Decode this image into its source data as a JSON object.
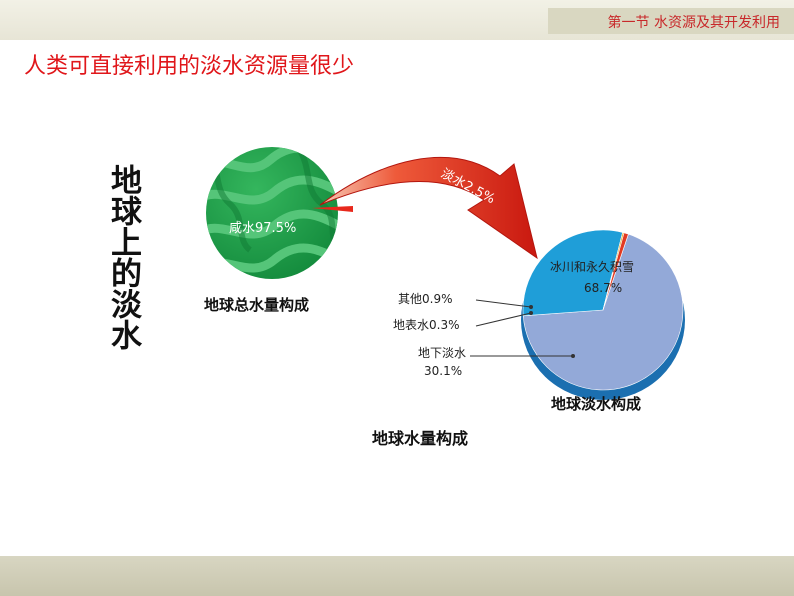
{
  "header": {
    "text": "第一节 水资源及其开发利用"
  },
  "slide_title": "人类可直接利用的淡水资源量很少",
  "vertical_label": "地球上的淡水",
  "captions": {
    "total_water": "地球总水量构成",
    "fresh_water": "地球淡水构成",
    "main": "地球水量构成"
  },
  "chart_data": [
    {
      "type": "pie",
      "title": "地球总水量构成",
      "slices": [
        {
          "label": "咸水",
          "value": 97.5,
          "display": "咸水97.5%",
          "color": "#1e9a48"
        },
        {
          "label": "淡水",
          "value": 2.5,
          "display": "淡水2.5%",
          "color": "#e03020"
        }
      ]
    },
    {
      "type": "pie",
      "title": "地球淡水构成",
      "slices": [
        {
          "label": "冰川和永久积雪",
          "value": 68.7,
          "display_lines": [
            "冰川和永久积雪",
            "68.7%"
          ],
          "color": "#93a9d8"
        },
        {
          "label": "地下淡水",
          "value": 30.1,
          "display_lines": [
            "地下淡水",
            "30.1%"
          ],
          "color": "#1f9ed8"
        },
        {
          "label": "地表水",
          "value": 0.3,
          "display_lines": [
            "地表水0.3%"
          ],
          "color": "#e8a51e"
        },
        {
          "label": "其他",
          "value": 0.9,
          "display_lines": [
            "其他0.9%"
          ],
          "color": "#e23a22"
        }
      ]
    }
  ]
}
